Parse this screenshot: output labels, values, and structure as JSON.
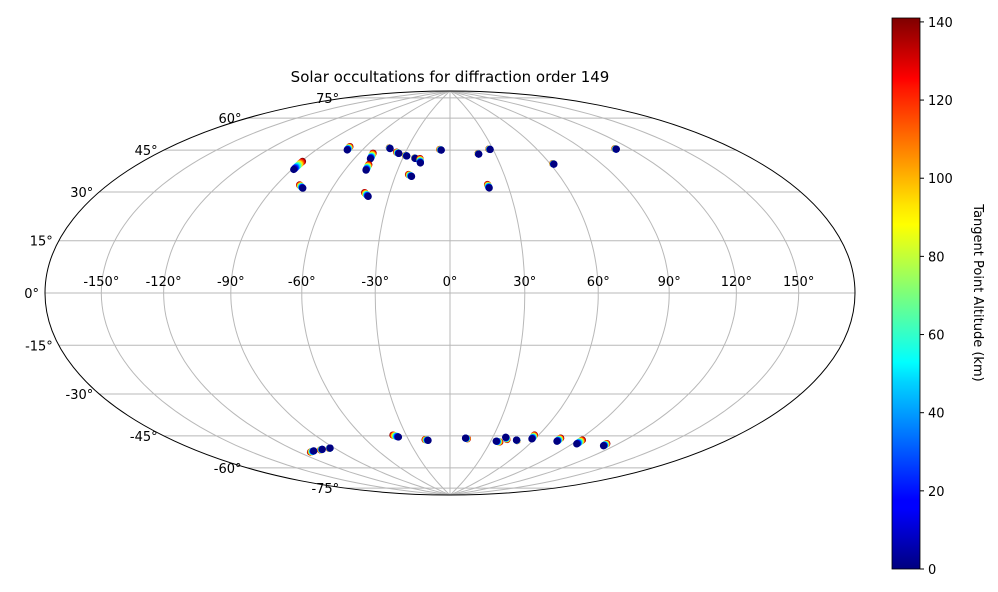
{
  "chart_data": {
    "type": "scatter",
    "projection": "hammer",
    "title": "Solar occultations for diffraction order 149",
    "grid": true,
    "lon_ticks": [
      "-150°",
      "-120°",
      "-90°",
      "-60°",
      "-30°",
      "0°",
      "30°",
      "60°",
      "90°",
      "120°",
      "150°"
    ],
    "lat_ticks": [
      "75°",
      "60°",
      "45°",
      "30°",
      "15°",
      "0°",
      "-15°",
      "-30°",
      "-45°",
      "-60°",
      "-75°"
    ],
    "colorbar": {
      "label": "Tangent Point Altitude (km)",
      "range": [
        0,
        141
      ],
      "ticks": [
        "0",
        "20",
        "40",
        "60",
        "80",
        "100",
        "120",
        "140"
      ],
      "colormap": "jet"
    },
    "occultations": [
      {
        "lon": -89,
        "lat": 48,
        "dlon": 0.3,
        "dlat": 3.5
      },
      {
        "lon": -70,
        "lat": 58,
        "dlon": 0.8,
        "dlat": 1.5
      },
      {
        "lon": -75,
        "lat": 41,
        "dlon": 3,
        "dlat": 1.2
      },
      {
        "lon": -50,
        "lat": 55,
        "dlon": 1.0,
        "dlat": 2.5
      },
      {
        "lon": -48,
        "lat": 50,
        "dlon": 0.5,
        "dlat": 2.5
      },
      {
        "lon": -40,
        "lat": 39,
        "dlon": 2.5,
        "dlat": 1.5
      },
      {
        "lon": -42,
        "lat": 60,
        "dlon": 0.8,
        "dlat": 0.3
      },
      {
        "lon": -34,
        "lat": 58,
        "dlon": 2,
        "dlat": 0.5
      },
      {
        "lon": -28,
        "lat": 57,
        "dlon": 1,
        "dlat": 0.2
      },
      {
        "lon": -22,
        "lat": 56,
        "dlon": 0.5,
        "dlat": 0.2
      },
      {
        "lon": -18,
        "lat": 54,
        "dlon": 1.0,
        "dlat": 2.0
      },
      {
        "lon": -21,
        "lat": 48,
        "dlon": 2,
        "dlat": 0.8
      },
      {
        "lon": -6,
        "lat": 60,
        "dlon": 1.2,
        "dlat": 0.3
      },
      {
        "lon": 19,
        "lat": 58,
        "dlon": 0.3,
        "dlat": 0.3
      },
      {
        "lon": 20,
        "lat": 43,
        "dlon": 0.5,
        "dlat": 1.5
      },
      {
        "lon": 28,
        "lat": 60,
        "dlon": 0.8,
        "dlat": 0.2
      },
      {
        "lon": 62,
        "lat": 52,
        "dlon": 0.3,
        "dlat": 0.3
      },
      {
        "lon": 111,
        "lat": 55,
        "dlon": 0.3,
        "dlat": 0.3
      },
      {
        "lon": -108,
        "lat": -62,
        "dlon": 4,
        "dlat": -0.2
      },
      {
        "lon": -100,
        "lat": -62,
        "dlon": 2,
        "dlat": -0.1
      },
      {
        "lon": -93,
        "lat": -62,
        "dlon": 1,
        "dlat": -0.1
      },
      {
        "lon": -36,
        "lat": -60,
        "dlon": 3,
        "dlat": 1.0
      },
      {
        "lon": -16,
        "lat": -62,
        "dlon": 2,
        "dlat": 0.4
      },
      {
        "lon": 11,
        "lat": -61,
        "dlon": -1.5,
        "dlat": -0.3
      },
      {
        "lon": 34,
        "lat": -62,
        "dlon": -3,
        "dlat": -0.3
      },
      {
        "lon": 39,
        "lat": -60,
        "dlon": -2,
        "dlat": -1.0
      },
      {
        "lon": 48,
        "lat": -61,
        "dlon": -0.7,
        "dlat": -0.2
      },
      {
        "lon": 58,
        "lat": -60,
        "dlon": 0.8,
        "dlat": 1.8
      },
      {
        "lon": 77,
        "lat": -60,
        "dlon": 0.2,
        "dlat": 1.5
      },
      {
        "lon": 93,
        "lat": -60,
        "dlon": 0.2,
        "dlat": 1.8
      },
      {
        "lon": 113,
        "lat": -59,
        "dlon": 0.5,
        "dlat": 1.0
      }
    ]
  }
}
